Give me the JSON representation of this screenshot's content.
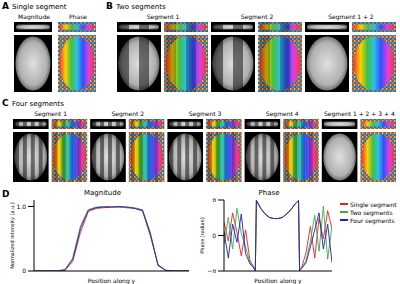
{
  "panels": [
    {
      "label": "A",
      "title": "Single segment",
      "columns": [
        "Magnitude",
        "Phase"
      ]
    },
    {
      "label": "B",
      "title": "Two segments",
      "columns": [
        "Segment 1",
        "Segment 2",
        "Segment 1 + 2"
      ]
    },
    {
      "label": "C",
      "title": "Four segments",
      "columns": [
        "Segment 1",
        "Segment 2",
        "Segment 3",
        "Segment 4",
        "Segment 1 + 2 + 3 + 4"
      ]
    }
  ],
  "plots_label": "D",
  "chart_data": [
    {
      "type": "line",
      "title": "Magnitude",
      "x_label": "Position along y",
      "y_label": "Normalized intensity [a.u.]",
      "x": [
        0,
        5,
        10,
        15,
        20,
        25,
        30,
        35,
        40,
        45,
        50,
        55,
        60,
        65,
        70,
        75,
        80,
        85,
        90,
        95,
        100
      ],
      "xlim": [
        0,
        100
      ],
      "ylim": [
        0,
        1.1
      ],
      "yticks": [
        0,
        {
          "value": 1,
          "label": "1.0"
        }
      ],
      "tick_labels": "y",
      "grid": false,
      "series": [
        {
          "name": "Single segment",
          "color": "#e8202a",
          "values": [
            0,
            0,
            0,
            0,
            0.01,
            0.15,
            0.6,
            0.92,
            0.97,
            0.98,
            0.99,
            0.99,
            0.98,
            0.97,
            0.93,
            0.55,
            0.1,
            0.01,
            0,
            0,
            0
          ]
        },
        {
          "name": "Two segments",
          "color": "#3cb043",
          "values": [
            0,
            0,
            0,
            0,
            0.02,
            0.2,
            0.7,
            0.95,
            0.99,
            1.0,
            1.0,
            0.99,
            0.99,
            0.98,
            0.95,
            0.6,
            0.08,
            0.01,
            0,
            0,
            0
          ]
        },
        {
          "name": "Four segments",
          "color": "#1f1fbf",
          "values": [
            0,
            0,
            0,
            0,
            0.02,
            0.18,
            0.66,
            0.94,
            0.98,
            0.99,
            0.99,
            1.0,
            0.99,
            0.97,
            0.94,
            0.58,
            0.09,
            0.01,
            0,
            0,
            0
          ]
        }
      ]
    },
    {
      "type": "line",
      "title": "Phase",
      "x_label": "Position along y",
      "y_label": "Phase [radian]",
      "x": [
        0,
        4,
        8,
        12,
        16,
        20,
        24,
        27,
        29,
        30,
        34,
        38,
        42,
        46,
        50,
        54,
        58,
        62,
        66,
        69,
        70,
        72,
        76,
        80,
        84,
        88,
        92,
        96,
        100
      ],
      "xlim": [
        0,
        100
      ],
      "ylim": [
        -3.14159,
        3.14159
      ],
      "yticks": [
        {
          "value": -3.14159,
          "label": "−π"
        },
        0,
        {
          "value": 3.14159,
          "label": "π"
        }
      ],
      "tick_labels": "y",
      "grid": false,
      "legend": "right",
      "series": [
        {
          "name": "Single segment",
          "color": "#e8202a",
          "values": [
            1.2,
            -0.5,
            2.0,
            0.3,
            -1.8,
            0.5,
            -2.2,
            -2.7,
            -3.1,
            3.1,
            2.4,
            1.9,
            1.6,
            1.5,
            1.5,
            1.6,
            1.9,
            2.3,
            2.8,
            3.1,
            -3.1,
            -2.8,
            -1.5,
            0.8,
            -2.0,
            1.5,
            -0.3,
            2.2,
            0.6
          ]
        },
        {
          "name": "Two segments",
          "color": "#3cb043",
          "values": [
            -0.8,
            1.6,
            -1.2,
            2.4,
            0.2,
            -1.0,
            -2.4,
            -2.8,
            -3.1,
            3.1,
            2.4,
            1.9,
            1.6,
            1.5,
            1.5,
            1.6,
            1.9,
            2.3,
            2.8,
            3.1,
            -3.1,
            -2.9,
            -2.2,
            -0.5,
            1.8,
            -1.4,
            2.6,
            -2.1,
            0.9
          ]
        },
        {
          "name": "Four segments",
          "color": "#1f1fbf",
          "values": [
            0.4,
            -2.0,
            1.0,
            -0.6,
            1.9,
            -1.6,
            -2.5,
            -2.8,
            -3.1,
            3.1,
            2.4,
            1.9,
            1.6,
            1.5,
            1.5,
            1.6,
            1.9,
            2.3,
            2.8,
            3.1,
            -3.1,
            -2.9,
            -2.4,
            -1.0,
            0.5,
            2.0,
            -1.2,
            1.0,
            -2.4
          ]
        }
      ]
    }
  ]
}
